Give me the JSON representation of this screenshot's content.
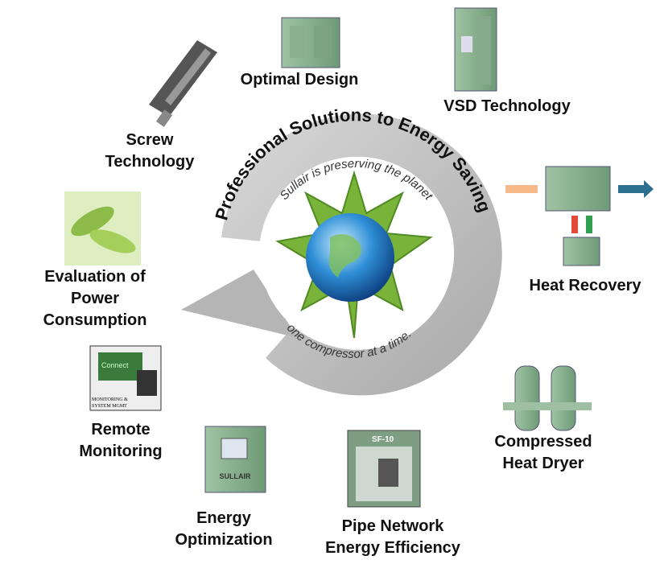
{
  "ring_title": "Professional Solutions to Energy Saving",
  "center": {
    "top_text": "Sullair is preserving the planet",
    "bottom_text": "one compressor at a time."
  },
  "items": [
    {
      "label": [
        "Optimal Design"
      ]
    },
    {
      "label": [
        "VSD Technology"
      ]
    },
    {
      "label": [
        "Screw",
        "Technology"
      ]
    },
    {
      "label": [
        "Heat Recovery"
      ]
    },
    {
      "label": [
        "Evaluation of",
        "Power",
        "Consumption"
      ]
    },
    {
      "label": [
        "Remote",
        "Monitoring"
      ],
      "icon_texts": [
        "Connect",
        "MONITORING &",
        "SYSTEM MGMT"
      ]
    },
    {
      "label": [
        "Compressed",
        "Heat Dryer"
      ]
    },
    {
      "label": [
        "Energy",
        "Optimization"
      ],
      "icon_texts": [
        "SULLAIR"
      ]
    },
    {
      "label": [
        "Pipe Network",
        "Energy Efficiency"
      ],
      "icon_texts": [
        "SF-10"
      ]
    }
  ]
}
